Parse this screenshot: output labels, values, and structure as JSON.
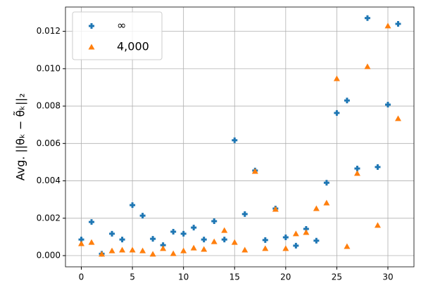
{
  "chart_data": {
    "type": "scatter",
    "ylabel": "Avg. ||θₖ − θ̃ₖ||₂",
    "x": [
      0,
      1,
      2,
      3,
      4,
      5,
      6,
      7,
      8,
      9,
      10,
      11,
      12,
      13,
      14,
      15,
      16,
      17,
      18,
      19,
      20,
      21,
      22,
      23,
      24,
      25,
      26,
      27,
      28,
      29,
      30,
      31
    ],
    "series": [
      {
        "name": "∞",
        "color": "#1f77b4",
        "marker": "plus",
        "values": [
          0.00086,
          0.0018,
          0.0001,
          0.00117,
          0.00086,
          0.0027,
          0.00214,
          0.0009,
          0.00056,
          0.00128,
          0.00117,
          0.0015,
          0.00086,
          0.00184,
          0.00086,
          0.00617,
          0.00222,
          0.00455,
          0.00083,
          0.00252,
          0.00098,
          0.00053,
          0.00143,
          0.0008,
          0.0039,
          0.00763,
          0.0083,
          0.00466,
          0.01271,
          0.00474,
          0.00808,
          0.0124
        ]
      },
      {
        "name": "4,000",
        "color": "#ff7f0e",
        "marker": "triangle",
        "values": [
          0.00064,
          0.00071,
          8e-05,
          0.00026,
          0.0003,
          0.0003,
          0.00026,
          8e-05,
          0.00038,
          0.00011,
          0.00026,
          0.00041,
          0.00034,
          0.00075,
          0.00135,
          0.00071,
          0.0003,
          0.00451,
          0.00038,
          0.00248,
          0.00038,
          0.00117,
          0.00124,
          0.00252,
          0.00282,
          0.00947,
          0.00049,
          0.0044,
          0.01011,
          0.00162,
          0.01229,
          0.00733
        ]
      }
    ],
    "xlim": [
      -1.55,
      32.55
    ],
    "ylim": [
      -0.0006,
      0.0133
    ],
    "xticks": [
      0,
      5,
      10,
      15,
      20,
      25,
      30
    ],
    "yticks": [
      {
        "value": 0,
        "label": "0.000"
      },
      {
        "value": 0.002,
        "label": "0.002"
      },
      {
        "value": 0.004,
        "label": "0.004"
      },
      {
        "value": 0.006,
        "label": "0.006"
      },
      {
        "value": 0.008,
        "label": "0.008"
      },
      {
        "value": 0.01,
        "label": "0.010"
      },
      {
        "value": 0.012,
        "label": "0.012"
      }
    ],
    "grid": true,
    "legend": "upper left"
  }
}
